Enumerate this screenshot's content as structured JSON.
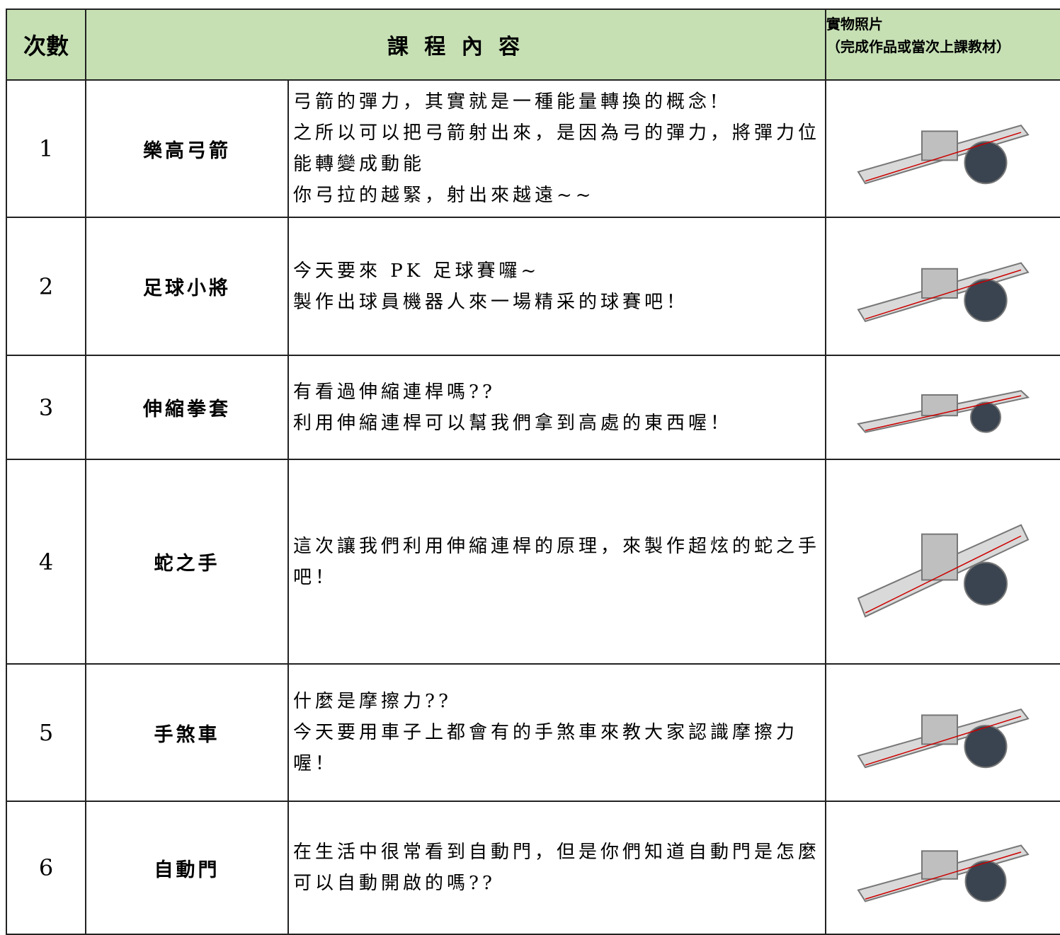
{
  "table": {
    "header": [
      "次數",
      "課 程 內 容",
      "實物照片",
      "（完成作品或當次上課教材）"
    ],
    "rows": [
      {
        "number": "1",
        "name": "樂高弓箭",
        "lines": [
          "弓箭的彈力，其實就是一種能量轉換的概念!",
          "之所以可以把弓箭射出來，是因為弓的彈力，將彈力位能轉變成動能",
          "你弓拉的越緊，射出來越遠~~"
        ]
      },
      {
        "number": "2",
        "name": "足球小將",
        "lines": [
          "今天要來 PK 足球賽囉~",
          "製作出球員機器人來一場精采的球賽吧！"
        ]
      },
      {
        "number": "3",
        "name": "伸縮拳套",
        "lines": [
          "有看過伸縮連桿嗎??",
          "利用伸縮連桿可以幫我們拿到高處的東西喔！"
        ]
      },
      {
        "number": "4",
        "name": "蛇之手",
        "lines": [
          "這次讓我們利用伸縮連桿的原理，來製作超炫的蛇之手吧！"
        ]
      },
      {
        "number": "5",
        "name": "手煞車",
        "lines": [
          "什麼是摩擦力??",
          "今天要用車子上都會有的手煞車來教大家認識摩擦力喔！"
        ]
      },
      {
        "number": "6",
        "name": "自動門",
        "lines": [
          "在生活中很常看到自動門，但是你們知道自動門是怎麼可以自動開啟的嗎??"
        ]
      }
    ]
  }
}
